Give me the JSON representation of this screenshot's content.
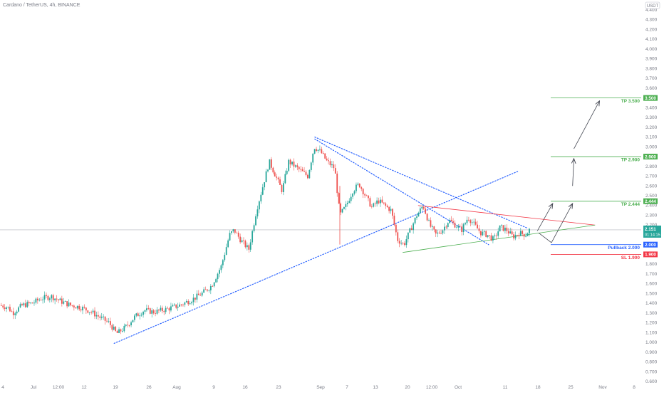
{
  "header": {
    "title": "Cardano / TetherUS, 4h, BINANCE",
    "currency_badge": "USDT"
  },
  "colors": {
    "up": "#26a69a",
    "down": "#ef5350",
    "blue_dotted": "#2962ff",
    "green_line": "#4caf50",
    "red_line": "#f23645",
    "arrow": "#434651",
    "price_badge": "#26a69a"
  },
  "chart_data": {
    "type": "candlestick",
    "symbol": "ADA/USDT",
    "interval": "4h",
    "exchange": "BINANCE",
    "y_axis": {
      "min": 0.6,
      "max": 4.4,
      "step": 0.1,
      "scale": "linear",
      "tick_labels": [
        "0.600",
        "0.700",
        "0.800",
        "0.900",
        "1.000",
        "1.100",
        "1.200",
        "1.300",
        "1.400",
        "1.500",
        "1.600",
        "1.700",
        "1.800",
        "1.900",
        "2.000",
        "2.100",
        "2.200",
        "2.300",
        "2.400",
        "2.500",
        "2.600",
        "2.700",
        "2.800",
        "2.900",
        "3.000",
        "3.100",
        "3.200",
        "3.300",
        "3.400",
        "3.500",
        "3.600",
        "3.700",
        "3.800",
        "3.900",
        "4.000",
        "4.100",
        "4.200",
        "4.300",
        "4.400"
      ]
    },
    "x_axis": {
      "tick_labels": [
        "4",
        "Jul",
        "12:00",
        "12",
        "19",
        "26",
        "Aug",
        "9",
        "16",
        "23",
        "Sep",
        "7",
        "13",
        "20",
        "12:00",
        "Oct",
        "11",
        "18",
        "25",
        "Nov",
        "8"
      ]
    },
    "price_path": [
      {
        "x": 0,
        "y": 1.38
      },
      {
        "x": 0.012,
        "y": 1.36
      },
      {
        "x": 0.02,
        "y": 1.3
      },
      {
        "x": 0.035,
        "y": 1.38
      },
      {
        "x": 0.05,
        "y": 1.4
      },
      {
        "x": 0.065,
        "y": 1.45
      },
      {
        "x": 0.08,
        "y": 1.47
      },
      {
        "x": 0.095,
        "y": 1.42
      },
      {
        "x": 0.11,
        "y": 1.38
      },
      {
        "x": 0.125,
        "y": 1.36
      },
      {
        "x": 0.14,
        "y": 1.32
      },
      {
        "x": 0.155,
        "y": 1.26
      },
      {
        "x": 0.17,
        "y": 1.2
      },
      {
        "x": 0.182,
        "y": 1.09
      },
      {
        "x": 0.195,
        "y": 1.15
      },
      {
        "x": 0.21,
        "y": 1.26
      },
      {
        "x": 0.225,
        "y": 1.33
      },
      {
        "x": 0.24,
        "y": 1.31
      },
      {
        "x": 0.26,
        "y": 1.34
      },
      {
        "x": 0.28,
        "y": 1.38
      },
      {
        "x": 0.3,
        "y": 1.44
      },
      {
        "x": 0.315,
        "y": 1.5
      },
      {
        "x": 0.33,
        "y": 1.58
      },
      {
        "x": 0.345,
        "y": 1.78
      },
      {
        "x": 0.358,
        "y": 2.1
      },
      {
        "x": 0.365,
        "y": 2.15
      },
      {
        "x": 0.375,
        "y": 2.05
      },
      {
        "x": 0.388,
        "y": 1.95
      },
      {
        "x": 0.4,
        "y": 2.35
      },
      {
        "x": 0.41,
        "y": 2.6
      },
      {
        "x": 0.42,
        "y": 2.85
      },
      {
        "x": 0.43,
        "y": 2.7
      },
      {
        "x": 0.44,
        "y": 2.55
      },
      {
        "x": 0.45,
        "y": 2.85
      },
      {
        "x": 0.46,
        "y": 2.8
      },
      {
        "x": 0.47,
        "y": 2.75
      },
      {
        "x": 0.48,
        "y": 2.7
      },
      {
        "x": 0.49,
        "y": 3.0
      },
      {
        "x": 0.5,
        "y": 2.95
      },
      {
        "x": 0.51,
        "y": 2.85
      },
      {
        "x": 0.522,
        "y": 2.78
      },
      {
        "x": 0.53,
        "y": 2.3
      },
      {
        "x": 0.54,
        "y": 2.4
      },
      {
        "x": 0.55,
        "y": 2.55
      },
      {
        "x": 0.56,
        "y": 2.62
      },
      {
        "x": 0.57,
        "y": 2.5
      },
      {
        "x": 0.58,
        "y": 2.38
      },
      {
        "x": 0.59,
        "y": 2.45
      },
      {
        "x": 0.6,
        "y": 2.4
      },
      {
        "x": 0.61,
        "y": 2.35
      },
      {
        "x": 0.62,
        "y": 2.05
      },
      {
        "x": 0.63,
        "y": 2.0
      },
      {
        "x": 0.64,
        "y": 2.15
      },
      {
        "x": 0.65,
        "y": 2.3
      },
      {
        "x": 0.66,
        "y": 2.4
      },
      {
        "x": 0.67,
        "y": 2.2
      },
      {
        "x": 0.68,
        "y": 2.1
      },
      {
        "x": 0.69,
        "y": 2.15
      },
      {
        "x": 0.7,
        "y": 2.25
      },
      {
        "x": 0.71,
        "y": 2.2
      },
      {
        "x": 0.72,
        "y": 2.15
      },
      {
        "x": 0.73,
        "y": 2.28
      },
      {
        "x": 0.74,
        "y": 2.2
      },
      {
        "x": 0.75,
        "y": 2.12
      },
      {
        "x": 0.76,
        "y": 2.1
      },
      {
        "x": 0.77,
        "y": 2.05
      },
      {
        "x": 0.78,
        "y": 2.18
      },
      {
        "x": 0.79,
        "y": 2.15
      },
      {
        "x": 0.8,
        "y": 2.08
      },
      {
        "x": 0.81,
        "y": 2.12
      },
      {
        "x": 0.82,
        "y": 2.1
      },
      {
        "x": 0.825,
        "y": 2.15
      }
    ],
    "levels": [
      {
        "label": "TP 3.500",
        "value": 3.5,
        "badge": "3.500",
        "color": "#4caf50",
        "label_color": "#4caf50"
      },
      {
        "label": "TP 2.900",
        "value": 2.9,
        "badge": "2.900",
        "color": "#4caf50",
        "label_color": "#4caf50"
      },
      {
        "label": "TP 2.444",
        "value": 2.444,
        "badge": "2.444",
        "color": "#4caf50",
        "label_color": "#4caf50"
      },
      {
        "label": "Pullback 2.000",
        "value": 2.0,
        "badge": "2.000",
        "color": "#2962ff",
        "label_color": "#2962ff"
      },
      {
        "label": "SL 1.900",
        "value": 1.9,
        "badge": "1.900",
        "color": "#f23645",
        "label_color": "#f23645"
      }
    ],
    "current_price": {
      "value": 2.151,
      "label": "2.151",
      "countdown": "01:14:15"
    },
    "trendlines": [
      {
        "name": "ascending-support",
        "style": "dotted",
        "color": "#2962ff",
        "from": {
          "x": 0.178,
          "y": 0.99
        },
        "to": {
          "x": 0.808,
          "y": 2.75
        }
      },
      {
        "name": "descending-channel-upper",
        "style": "dotted",
        "color": "#2962ff",
        "from": {
          "x": 0.491,
          "y": 3.1
        },
        "to": {
          "x": 0.822,
          "y": 2.17
        }
      },
      {
        "name": "descending-channel-lower",
        "style": "dotted",
        "color": "#2962ff",
        "from": {
          "x": 0.491,
          "y": 3.08
        },
        "to": {
          "x": 0.762,
          "y": 2.0
        }
      },
      {
        "name": "triangle-resistance",
        "style": "solid",
        "color": "#f23645",
        "from": {
          "x": 0.652,
          "y": 2.4
        },
        "to": {
          "x": 0.928,
          "y": 2.2
        }
      },
      {
        "name": "triangle-support",
        "style": "solid",
        "color": "#4caf50",
        "from": {
          "x": 0.628,
          "y": 1.92
        },
        "to": {
          "x": 0.928,
          "y": 2.2
        }
      },
      {
        "name": "drop-line",
        "style": "solid",
        "color": "#ef5350",
        "from": {
          "x": 0.53,
          "y": 2.6
        },
        "to": {
          "x": 0.53,
          "y": 2.0
        }
      }
    ],
    "projection_arrows": [
      {
        "from": {
          "x": 0.838,
          "y": 2.14
        },
        "to": {
          "x": 0.862,
          "y": 2.42
        }
      },
      {
        "from": {
          "x": 0.84,
          "y": 2.12
        },
        "to": {
          "x": 0.86,
          "y": 2.02
        }
      },
      {
        "from": {
          "x": 0.86,
          "y": 2.02
        },
        "to": {
          "x": 0.893,
          "y": 2.42
        }
      },
      {
        "from": {
          "x": 0.893,
          "y": 2.6
        },
        "to": {
          "x": 0.895,
          "y": 2.88
        }
      },
      {
        "from": {
          "x": 0.895,
          "y": 2.98
        },
        "to": {
          "x": 0.935,
          "y": 3.47
        }
      }
    ]
  }
}
